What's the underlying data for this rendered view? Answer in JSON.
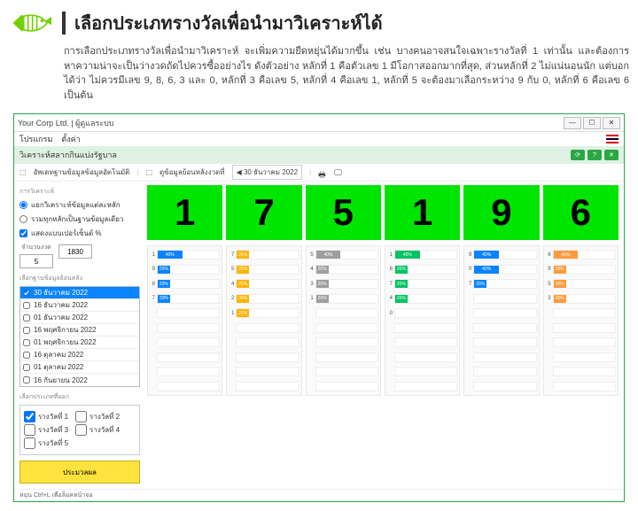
{
  "header": {
    "title": "เลือกประเภทรางวัลเพื่อนำมาวิเคราะห์ได้",
    "paragraph": "การเลือกประเภทรางวัลเพื่อนำมาวิเคราะห์ จะเพิ่มความยืดหยุ่นได้มากขึ้น เช่น บางคนอาจสนใจเฉพาะรางวัลที่ 1 เท่านั้น และต้องการหาความน่าจะเป็นว่างวดถัดไปควรซื้ออย่างไร ดังตัวอย่าง หลักที่ 1 คือตัวเลข 1 มีโอกาสออกมากที่สุด, ส่วนหลักที่ 2 ไม่แน่นอนนัก แต่บอกได้ว่า ไม่ควรมีเลข 9, 8, 6, 3 และ 0, หลักที่ 3 คือเลข 5, หลักที่ 4 คือเลข 1, หลักที่ 5 จะต้องมาเลือกระหว่าง 9 กับ 0, หลักที่ 6 คือเลข 6 เป็นต้น"
  },
  "window": {
    "title": "Your Corp Ltd. | ผู้ดูแลระบบ",
    "menu": {
      "m1": "โปรแกรม",
      "m2": "ตั้งค่า"
    },
    "sub": "วิเคราะห์สลากกินแบ่งรัฐบาล",
    "toolbar": {
      "t1": "อัพเดทฐานข้อมูลข้อมูลอัตโนมัติ",
      "t2": "ดูข้อมูลย้อนหลังงวดที่",
      "date": "30 ธันวาคม 2022"
    },
    "footer": "หมุน Ctrl+L เพื่อล็อคหน้าจอ"
  },
  "sidebar": {
    "g1_title": "การวิเคราะห์",
    "opt1": "แยกวิเคราะห์ข้อมูลแต่ละหลัก",
    "opt2": "รวมทุกหลักเป็นฐานข้อมูลเดียว",
    "opt3": "แสดงแบบเปอร์เซ็นต์ %",
    "num": {
      "l1": "จำนวนงวด",
      "v1": "5",
      "l2": "",
      "v2": "1830"
    },
    "g2_title": "เลือกฐานข้อมูลย้อนหลัง",
    "dates": [
      {
        "t": "30 ธันวาคม 2022",
        "sel": true,
        "chk": true
      },
      {
        "t": "16 ธันวาคม 2022",
        "sel": false,
        "chk": false
      },
      {
        "t": "01 ธันวาคม 2022",
        "sel": false,
        "chk": false
      },
      {
        "t": "16 พฤศจิกายน 2022",
        "sel": false,
        "chk": false
      },
      {
        "t": "01 พฤศจิกายน 2022",
        "sel": false,
        "chk": false
      },
      {
        "t": "16 ตุลาคม 2022",
        "sel": false,
        "chk": false
      },
      {
        "t": "01 ตุลาคม 2022",
        "sel": false,
        "chk": false
      },
      {
        "t": "16 กันยายน 2022",
        "sel": false,
        "chk": false
      }
    ],
    "g3_title": "เลือกประเภทที่ออก",
    "prizes": [
      {
        "t": "รางวัลที่ 1",
        "chk": true
      },
      {
        "t": "รางวัลที่ 2",
        "chk": false
      },
      {
        "t": "รางวัลที่ 3",
        "chk": false
      },
      {
        "t": "รางวัลที่ 4",
        "chk": false
      },
      {
        "t": "รางวัลที่ 5",
        "chk": false
      }
    ],
    "process": "ประมวลผล"
  },
  "digits": [
    "1",
    "7",
    "5",
    "1",
    "9",
    "6"
  ],
  "chart_colors": {
    "c0": "#0a84ff",
    "c1": "#ffb400",
    "c2": "#9e9e9e",
    "c3": "#00c463",
    "c4": "#0a84ff",
    "c5": "#ff9a3c"
  },
  "charts": [
    [
      {
        "l": "1",
        "v": 40
      },
      {
        "l": "9",
        "v": 20
      },
      {
        "l": "8",
        "v": 20
      },
      {
        "l": "7",
        "v": 20
      },
      {
        "l": "",
        "v": 0
      },
      {
        "l": "",
        "v": 0
      },
      {
        "l": "",
        "v": 0
      },
      {
        "l": "",
        "v": 0
      },
      {
        "l": "",
        "v": 0
      },
      {
        "l": "",
        "v": 0
      }
    ],
    [
      {
        "l": "7",
        "v": 20
      },
      {
        "l": "5",
        "v": 20
      },
      {
        "l": "4",
        "v": 20
      },
      {
        "l": "2",
        "v": 20
      },
      {
        "l": "1",
        "v": 20
      },
      {
        "l": "",
        "v": 0
      },
      {
        "l": "",
        "v": 0
      },
      {
        "l": "",
        "v": 0
      },
      {
        "l": "",
        "v": 0
      },
      {
        "l": "",
        "v": 0
      }
    ],
    [
      {
        "l": "5",
        "v": 40
      },
      {
        "l": "4",
        "v": 20
      },
      {
        "l": "3",
        "v": 20
      },
      {
        "l": "1",
        "v": 20
      },
      {
        "l": "",
        "v": 0
      },
      {
        "l": "",
        "v": 0
      },
      {
        "l": "",
        "v": 0
      },
      {
        "l": "",
        "v": 0
      },
      {
        "l": "",
        "v": 0
      },
      {
        "l": "",
        "v": 0
      }
    ],
    [
      {
        "l": "1",
        "v": 40
      },
      {
        "l": "8",
        "v": 20
      },
      {
        "l": "7",
        "v": 20
      },
      {
        "l": "4",
        "v": 20
      },
      {
        "l": "0",
        "v": 0
      },
      {
        "l": "",
        "v": 0
      },
      {
        "l": "",
        "v": 0
      },
      {
        "l": "",
        "v": 0
      },
      {
        "l": "",
        "v": 0
      },
      {
        "l": "",
        "v": 0
      }
    ],
    [
      {
        "l": "9",
        "v": 40
      },
      {
        "l": "0",
        "v": 40
      },
      {
        "l": "7",
        "v": 20
      },
      {
        "l": "",
        "v": 0
      },
      {
        "l": "",
        "v": 0
      },
      {
        "l": "",
        "v": 0
      },
      {
        "l": "",
        "v": 0
      },
      {
        "l": "",
        "v": 0
      },
      {
        "l": "",
        "v": 0
      },
      {
        "l": "",
        "v": 0
      }
    ],
    [
      {
        "l": "6",
        "v": 40
      },
      {
        "l": "9",
        "v": 20
      },
      {
        "l": "5",
        "v": 20
      },
      {
        "l": "3",
        "v": 20
      },
      {
        "l": "",
        "v": 0
      },
      {
        "l": "",
        "v": 0
      },
      {
        "l": "",
        "v": 0
      },
      {
        "l": "",
        "v": 0
      },
      {
        "l": "",
        "v": 0
      },
      {
        "l": "",
        "v": 0
      }
    ]
  ]
}
